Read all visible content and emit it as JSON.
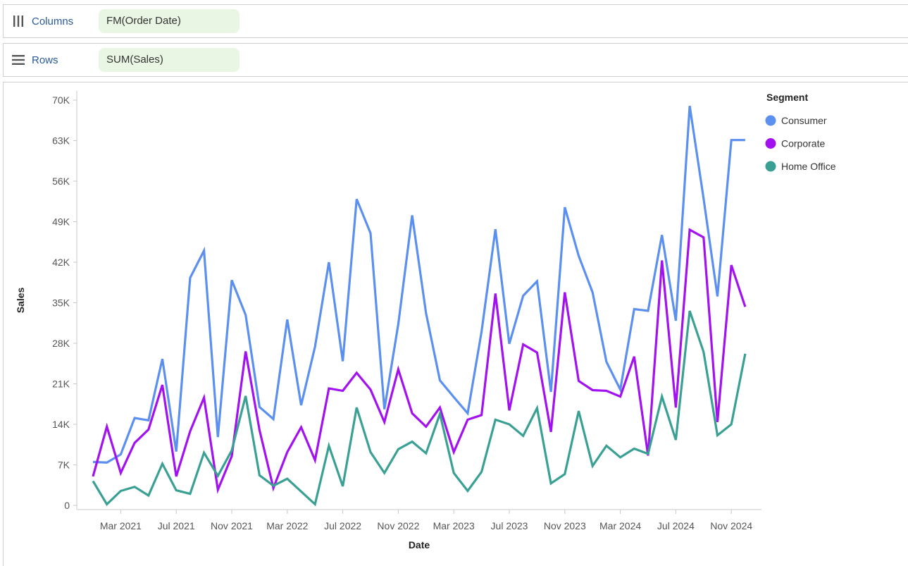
{
  "shelves": {
    "columns": {
      "label": "Columns",
      "field": "FM(Order Date)"
    },
    "rows": {
      "label": "Rows",
      "field": "SUM(Sales)"
    }
  },
  "legend": {
    "title": "Segment",
    "items": [
      {
        "label": "Consumer",
        "color": "#5b8ff0"
      },
      {
        "label": "Corporate",
        "color": "#a211f0"
      },
      {
        "label": "Home Office",
        "color": "#3aa094"
      }
    ]
  },
  "chart_data": {
    "type": "line",
    "title": "",
    "xlabel": "Date",
    "ylabel": "Sales",
    "ylim": [
      0,
      70000
    ],
    "yticks": [
      0,
      7000,
      14000,
      21000,
      28000,
      35000,
      42000,
      49000,
      56000,
      63000,
      70000
    ],
    "ytick_labels": [
      "0",
      "7K",
      "14K",
      "21K",
      "28K",
      "35K",
      "42K",
      "49K",
      "56K",
      "63K",
      "70K"
    ],
    "xtick_labels": [
      "Mar 2021",
      "Jul 2021",
      "Nov 2021",
      "Mar 2022",
      "Jul 2022",
      "Nov 2022",
      "Mar 2023",
      "Jul 2023",
      "Nov 2023",
      "Mar 2024",
      "Jul 2024",
      "Nov 2024"
    ],
    "x": [
      "2021-01",
      "2021-02",
      "2021-03",
      "2021-04",
      "2021-05",
      "2021-06",
      "2021-07",
      "2021-08",
      "2021-09",
      "2021-10",
      "2021-11",
      "2021-12",
      "2022-01",
      "2022-02",
      "2022-03",
      "2022-04",
      "2022-05",
      "2022-06",
      "2022-07",
      "2022-08",
      "2022-09",
      "2022-10",
      "2022-11",
      "2022-12",
      "2023-01",
      "2023-02",
      "2023-03",
      "2023-04",
      "2023-05",
      "2023-06",
      "2023-07",
      "2023-08",
      "2023-09",
      "2023-10",
      "2023-11",
      "2023-12",
      "2024-01",
      "2024-02",
      "2024-03",
      "2024-04",
      "2024-05",
      "2024-06",
      "2024-07",
      "2024-08",
      "2024-09",
      "2024-10",
      "2024-11",
      "2024-12"
    ],
    "grid": false,
    "legend_position": "top-right",
    "series": [
      {
        "name": "Consumer",
        "color": "#5b8ff0",
        "values": [
          7500,
          7400,
          8800,
          15100,
          14700,
          25300,
          9300,
          39300,
          44000,
          11800,
          38900,
          32900,
          17000,
          14900,
          32100,
          17300,
          27400,
          42000,
          24900,
          52900,
          47000,
          16600,
          31300,
          50100,
          33200,
          21600,
          18700,
          15900,
          30000,
          47700,
          27900,
          36200,
          38700,
          19600,
          51500,
          43100,
          36800,
          24800,
          20000,
          33900,
          33600,
          46700,
          31900,
          69000,
          53000,
          36100,
          63100,
          63100
        ]
      },
      {
        "name": "Corporate",
        "color": "#a211f0",
        "values": [
          5000,
          13600,
          5600,
          10800,
          13100,
          20800,
          5000,
          12800,
          18600,
          2700,
          8500,
          26600,
          13000,
          3000,
          9200,
          13500,
          7800,
          20200,
          19800,
          22900,
          20000,
          14400,
          23500,
          15900,
          13600,
          16900,
          9200,
          14800,
          15600,
          36600,
          16400,
          27800,
          26400,
          12700,
          36800,
          21500,
          19900,
          19800,
          18800,
          25700,
          8600,
          42300,
          16900,
          47600,
          46300,
          14400,
          41500,
          34300
        ]
      },
      {
        "name": "Home Office",
        "color": "#3aa094",
        "values": [
          4200,
          200,
          2500,
          3200,
          1700,
          7200,
          2600,
          2000,
          9100,
          5100,
          9500,
          18900,
          5200,
          3400,
          4600,
          2400,
          200,
          10300,
          3300,
          16900,
          9200,
          5600,
          9700,
          11000,
          9000,
          15800,
          5600,
          2500,
          5800,
          14800,
          14000,
          12000,
          16800,
          3800,
          5400,
          16300,
          6800,
          10300,
          8300,
          9800,
          8900,
          18800,
          11300,
          33600,
          26500,
          12100,
          14000,
          26200
        ]
      }
    ]
  }
}
